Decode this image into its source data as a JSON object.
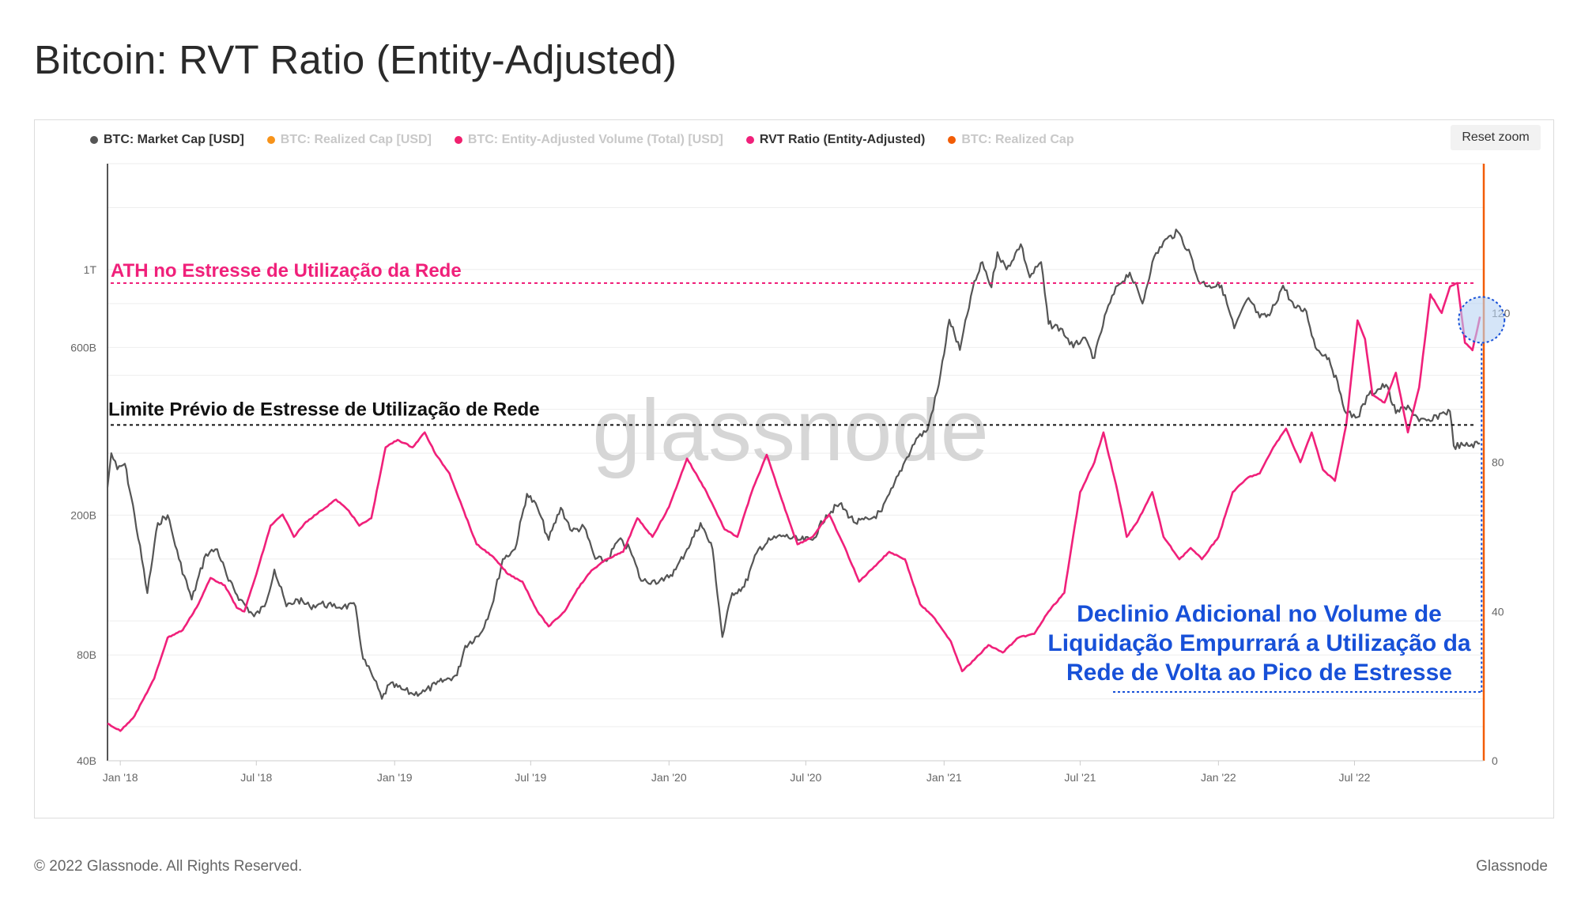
{
  "page": {
    "title": "Bitcoin: RVT Ratio (Entity-Adjusted)",
    "copyright": "© 2022 Glassnode. All Rights Reserved.",
    "brand": "Glassnode",
    "watermark": "glassnode"
  },
  "legend": [
    {
      "label": "BTC: Market Cap [USD]",
      "color": "#555555",
      "visible": true
    },
    {
      "label": "BTC: Realized Cap [USD]",
      "color": "#f7931a",
      "visible": false
    },
    {
      "label": "BTC: Entity-Adjusted Volume (Total) [USD]",
      "color": "#f0206e",
      "visible": false
    },
    {
      "label": "RVT Ratio (Entity-Adjusted)",
      "color": "#f0207a",
      "visible": true
    },
    {
      "label": "BTC: Realized Cap",
      "color": "#f25c05",
      "visible": false
    }
  ],
  "controls": {
    "reset_zoom": "Reset zoom"
  },
  "annotations": {
    "ath": "ATH no Estresse de Utilização da Rede",
    "limit": "Limite Prévio de Estresse de Utilização de Rede",
    "callout_lines": [
      "Declinio Adicional no Volume de",
      "Liquidação Empurrará a Utilização da",
      "Rede de Volta ao Pico de Estresse"
    ]
  },
  "colors": {
    "market_cap": "#555555",
    "rvt": "#f0207a",
    "ath_line": "#f0207a",
    "limit_line": "#111111",
    "callout": "#1750d8",
    "right_axis": "#f25c05"
  },
  "chart_data": {
    "type": "line",
    "title": "Bitcoin: RVT Ratio (Entity-Adjusted)",
    "x_ticks": [
      "Jan '18",
      "Jul '18",
      "Jan '19",
      "Jul '19",
      "Jan '20",
      "Jul '20",
      "Jan '21",
      "Jul '21",
      "Jan '22",
      "Jul '22"
    ],
    "x_range": [
      "2017-12-15",
      "2022-12-20"
    ],
    "y_left": {
      "scale": "log",
      "ticks": [
        "40B",
        "80B",
        "200B",
        "600B",
        "1T"
      ],
      "tick_values": [
        40,
        80,
        200,
        600,
        1000
      ],
      "unit": "USD (billions)",
      "range": [
        40,
        2000
      ]
    },
    "y_right": {
      "scale": "linear",
      "ticks": [
        "0",
        "40",
        "80",
        "120"
      ],
      "tick_values": [
        0,
        40,
        80,
        120
      ],
      "range": [
        0,
        160
      ]
    },
    "reference_lines": [
      {
        "name": "ATH no Estresse de Utilização da Rede",
        "axis": "right",
        "value": 128
      },
      {
        "name": "Limite Prévio de Estresse de Utilização de Rede",
        "axis": "right",
        "value": 90
      }
    ],
    "series": [
      {
        "name": "BTC: Market Cap [USD]",
        "axis": "left",
        "unit": "USD billions",
        "points": [
          [
            "2017-12-15",
            240
          ],
          [
            "2017-12-20",
            300
          ],
          [
            "2017-12-28",
            270
          ],
          [
            "2018-01-07",
            280
          ],
          [
            "2018-01-20",
            200
          ],
          [
            "2018-02-06",
            120
          ],
          [
            "2018-02-20",
            190
          ],
          [
            "2018-03-05",
            200
          ],
          [
            "2018-03-20",
            150
          ],
          [
            "2018-04-06",
            115
          ],
          [
            "2018-04-25",
            155
          ],
          [
            "2018-05-10",
            160
          ],
          [
            "2018-05-25",
            130
          ],
          [
            "2018-06-10",
            115
          ],
          [
            "2018-06-28",
            103
          ],
          [
            "2018-07-12",
            110
          ],
          [
            "2018-07-25",
            140
          ],
          [
            "2018-08-10",
            110
          ],
          [
            "2018-08-25",
            115
          ],
          [
            "2018-09-10",
            110
          ],
          [
            "2018-09-25",
            112
          ],
          [
            "2018-10-10",
            110
          ],
          [
            "2018-10-25",
            110
          ],
          [
            "2018-11-10",
            110
          ],
          [
            "2018-11-20",
            78
          ],
          [
            "2018-12-05",
            68
          ],
          [
            "2018-12-15",
            60
          ],
          [
            "2018-12-25",
            66
          ],
          [
            "2019-01-10",
            64
          ],
          [
            "2019-01-25",
            62
          ],
          [
            "2019-02-10",
            63
          ],
          [
            "2019-02-25",
            66
          ],
          [
            "2019-03-10",
            68
          ],
          [
            "2019-03-25",
            70
          ],
          [
            "2019-04-05",
            85
          ],
          [
            "2019-04-25",
            92
          ],
          [
            "2019-05-10",
            110
          ],
          [
            "2019-05-25",
            150
          ],
          [
            "2019-06-10",
            160
          ],
          [
            "2019-06-26",
            230
          ],
          [
            "2019-07-10",
            210
          ],
          [
            "2019-07-25",
            170
          ],
          [
            "2019-08-10",
            210
          ],
          [
            "2019-08-25",
            180
          ],
          [
            "2019-09-10",
            185
          ],
          [
            "2019-09-25",
            150
          ],
          [
            "2019-10-10",
            148
          ],
          [
            "2019-10-26",
            170
          ],
          [
            "2019-11-10",
            160
          ],
          [
            "2019-11-25",
            130
          ],
          [
            "2019-12-10",
            130
          ],
          [
            "2019-12-25",
            130
          ],
          [
            "2020-01-10",
            140
          ],
          [
            "2020-01-25",
            160
          ],
          [
            "2020-02-12",
            190
          ],
          [
            "2020-02-28",
            160
          ],
          [
            "2020-03-12",
            90
          ],
          [
            "2020-03-25",
            120
          ],
          [
            "2020-04-10",
            125
          ],
          [
            "2020-04-29",
            160
          ],
          [
            "2020-05-15",
            170
          ],
          [
            "2020-06-01",
            175
          ],
          [
            "2020-06-20",
            170
          ],
          [
            "2020-07-10",
            170
          ],
          [
            "2020-07-28",
            200
          ],
          [
            "2020-08-15",
            215
          ],
          [
            "2020-09-05",
            190
          ],
          [
            "2020-09-25",
            195
          ],
          [
            "2020-10-10",
            205
          ],
          [
            "2020-10-25",
            240
          ],
          [
            "2020-11-10",
            285
          ],
          [
            "2020-11-25",
            330
          ],
          [
            "2020-12-10",
            350
          ],
          [
            "2020-12-25",
            470
          ],
          [
            "2021-01-08",
            720
          ],
          [
            "2021-01-22",
            590
          ],
          [
            "2021-02-08",
            880
          ],
          [
            "2021-02-21",
            1050
          ],
          [
            "2021-03-05",
            890
          ],
          [
            "2021-03-13",
            1120
          ],
          [
            "2021-03-25",
            1000
          ],
          [
            "2021-04-13",
            1180
          ],
          [
            "2021-04-25",
            950
          ],
          [
            "2021-05-10",
            1050
          ],
          [
            "2021-05-20",
            700
          ],
          [
            "2021-06-05",
            680
          ],
          [
            "2021-06-22",
            600
          ],
          [
            "2021-07-05",
            640
          ],
          [
            "2021-07-20",
            560
          ],
          [
            "2021-08-05",
            760
          ],
          [
            "2021-08-20",
            900
          ],
          [
            "2021-09-05",
            980
          ],
          [
            "2021-09-22",
            800
          ],
          [
            "2021-10-05",
            1050
          ],
          [
            "2021-10-20",
            1200
          ],
          [
            "2021-11-08",
            1280
          ],
          [
            "2021-11-25",
            1100
          ],
          [
            "2021-12-05",
            930
          ],
          [
            "2021-12-20",
            900
          ],
          [
            "2022-01-05",
            900
          ],
          [
            "2022-01-22",
            680
          ],
          [
            "2022-02-10",
            830
          ],
          [
            "2022-02-25",
            730
          ],
          [
            "2022-03-10",
            740
          ],
          [
            "2022-03-28",
            900
          ],
          [
            "2022-04-12",
            780
          ],
          [
            "2022-04-28",
            760
          ],
          [
            "2022-05-10",
            600
          ],
          [
            "2022-05-28",
            560
          ],
          [
            "2022-06-13",
            440
          ],
          [
            "2022-06-20",
            390
          ],
          [
            "2022-07-05",
            380
          ],
          [
            "2022-07-20",
            440
          ],
          [
            "2022-08-12",
            470
          ],
          [
            "2022-08-25",
            390
          ],
          [
            "2022-09-10",
            410
          ],
          [
            "2022-09-25",
            370
          ],
          [
            "2022-10-10",
            370
          ],
          [
            "2022-10-25",
            390
          ],
          [
            "2022-11-05",
            395
          ],
          [
            "2022-11-10",
            315
          ],
          [
            "2022-11-25",
            315
          ],
          [
            "2022-12-15",
            320
          ]
        ]
      },
      {
        "name": "RVT Ratio (Entity-Adjusted)",
        "axis": "right",
        "points": [
          [
            "2017-12-15",
            10
          ],
          [
            "2018-01-01",
            8
          ],
          [
            "2018-01-20",
            12
          ],
          [
            "2018-02-15",
            22
          ],
          [
            "2018-03-05",
            33
          ],
          [
            "2018-03-25",
            35
          ],
          [
            "2018-04-15",
            42
          ],
          [
            "2018-05-01",
            49
          ],
          [
            "2018-05-20",
            47
          ],
          [
            "2018-06-05",
            41
          ],
          [
            "2018-06-15",
            40
          ],
          [
            "2018-07-01",
            50
          ],
          [
            "2018-07-20",
            63
          ],
          [
            "2018-08-05",
            66
          ],
          [
            "2018-08-20",
            60
          ],
          [
            "2018-09-05",
            64
          ],
          [
            "2018-09-25",
            67
          ],
          [
            "2018-10-15",
            70
          ],
          [
            "2018-11-01",
            67
          ],
          [
            "2018-11-15",
            63
          ],
          [
            "2018-12-01",
            65
          ],
          [
            "2018-12-20",
            84
          ],
          [
            "2019-01-05",
            86
          ],
          [
            "2019-01-25",
            84
          ],
          [
            "2019-02-10",
            88
          ],
          [
            "2019-02-25",
            82
          ],
          [
            "2019-03-15",
            77
          ],
          [
            "2019-04-01",
            68
          ],
          [
            "2019-04-20",
            58
          ],
          [
            "2019-05-10",
            55
          ],
          [
            "2019-06-01",
            50
          ],
          [
            "2019-06-20",
            48
          ],
          [
            "2019-07-10",
            40
          ],
          [
            "2019-07-25",
            36
          ],
          [
            "2019-08-15",
            40
          ],
          [
            "2019-09-01",
            46
          ],
          [
            "2019-09-20",
            51
          ],
          [
            "2019-10-10",
            54
          ],
          [
            "2019-11-01",
            56
          ],
          [
            "2019-11-20",
            65
          ],
          [
            "2019-12-10",
            60
          ],
          [
            "2020-01-01",
            68
          ],
          [
            "2020-01-25",
            81
          ],
          [
            "2020-02-20",
            72
          ],
          [
            "2020-03-15",
            62
          ],
          [
            "2020-04-01",
            60
          ],
          [
            "2020-04-20",
            72
          ],
          [
            "2020-05-10",
            82
          ],
          [
            "2020-05-30",
            70
          ],
          [
            "2020-06-20",
            58
          ],
          [
            "2020-07-10",
            60
          ],
          [
            "2020-08-01",
            66
          ],
          [
            "2020-08-20",
            58
          ],
          [
            "2020-09-10",
            48
          ],
          [
            "2020-09-30",
            52
          ],
          [
            "2020-10-20",
            56
          ],
          [
            "2020-11-10",
            54
          ],
          [
            "2020-11-30",
            42
          ],
          [
            "2020-12-20",
            38
          ],
          [
            "2021-01-10",
            32
          ],
          [
            "2021-01-25",
            24
          ],
          [
            "2021-02-10",
            27
          ],
          [
            "2021-03-01",
            31
          ],
          [
            "2021-03-20",
            29
          ],
          [
            "2021-04-10",
            33
          ],
          [
            "2021-05-01",
            34
          ],
          [
            "2021-05-20",
            40
          ],
          [
            "2021-06-10",
            45
          ],
          [
            "2021-07-01",
            72
          ],
          [
            "2021-07-20",
            80
          ],
          [
            "2021-08-01",
            88
          ],
          [
            "2021-08-20",
            72
          ],
          [
            "2021-09-01",
            60
          ],
          [
            "2021-09-15",
            64
          ],
          [
            "2021-10-05",
            72
          ],
          [
            "2021-10-20",
            60
          ],
          [
            "2021-11-10",
            54
          ],
          [
            "2021-11-25",
            57
          ],
          [
            "2021-12-10",
            54
          ],
          [
            "2022-01-01",
            60
          ],
          [
            "2022-01-20",
            72
          ],
          [
            "2022-02-10",
            76
          ],
          [
            "2022-02-25",
            77
          ],
          [
            "2022-03-15",
            84
          ],
          [
            "2022-04-01",
            89
          ],
          [
            "2022-04-20",
            80
          ],
          [
            "2022-05-05",
            88
          ],
          [
            "2022-05-20",
            78
          ],
          [
            "2022-06-05",
            75
          ],
          [
            "2022-06-20",
            90
          ],
          [
            "2022-07-05",
            118
          ],
          [
            "2022-07-15",
            113
          ],
          [
            "2022-07-25",
            98
          ],
          [
            "2022-08-10",
            96
          ],
          [
            "2022-08-25",
            104
          ],
          [
            "2022-09-10",
            88
          ],
          [
            "2022-09-25",
            100
          ],
          [
            "2022-10-10",
            125
          ],
          [
            "2022-10-25",
            120
          ],
          [
            "2022-11-05",
            127
          ],
          [
            "2022-11-15",
            128
          ],
          [
            "2022-11-25",
            112
          ],
          [
            "2022-12-05",
            110
          ],
          [
            "2022-12-15",
            119
          ]
        ]
      }
    ]
  }
}
